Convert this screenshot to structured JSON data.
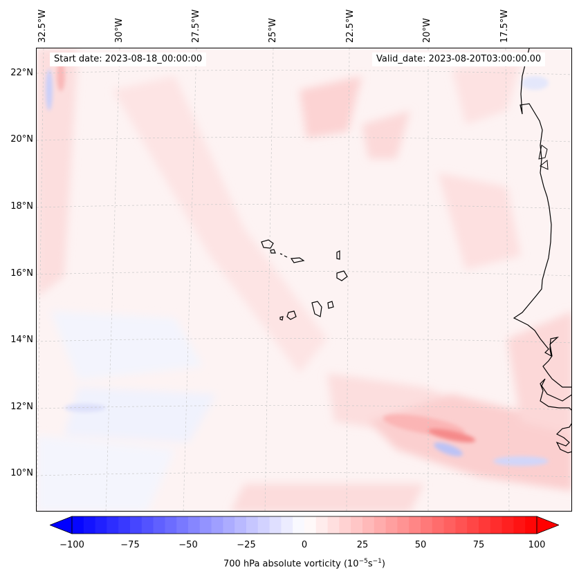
{
  "map": {
    "start_label": "Start date: 2023-08-18_00:00:00",
    "valid_label": "Valid_date: 2023-08-20T03:00:00.00",
    "lat_labels": [
      "22°N",
      "20°N",
      "18°N",
      "16°N",
      "14°N",
      "12°N",
      "10°N"
    ],
    "lon_labels": [
      "32.5°W",
      "30°W",
      "27.5°W",
      "25°W",
      "22.5°W",
      "20°W",
      "17.5°W"
    ],
    "coastline_color": "#000000",
    "grid_color": "#c8c8c8"
  },
  "colorbar": {
    "ticks": [
      "−100",
      "−75",
      "−50",
      "−25",
      "0",
      "25",
      "50",
      "75",
      "100"
    ],
    "label_prefix": "700 hPa absolute vorticity (10",
    "label_exp1": "−5",
    "label_mid": "s",
    "label_exp2": "−1",
    "label_suffix": ")",
    "min_color": "#0000ff",
    "mid_color": "#ffffff",
    "max_color": "#ff0000"
  }
}
